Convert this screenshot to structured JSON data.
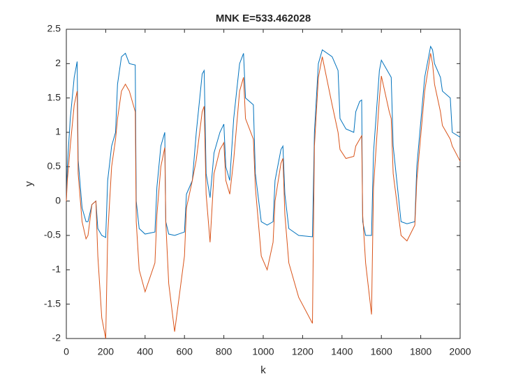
{
  "chart_data": {
    "type": "line",
    "title": "MNK E=533.462028",
    "xlabel": "k",
    "ylabel": "y",
    "x": [
      0,
      5,
      20,
      40,
      55,
      60,
      80,
      100,
      110,
      130,
      150,
      160,
      180,
      200,
      210,
      230,
      250,
      260,
      280,
      300,
      320,
      350,
      355,
      370,
      400,
      450,
      460,
      480,
      500,
      505,
      520,
      550,
      600,
      610,
      640,
      660,
      690,
      700,
      710,
      730,
      750,
      780,
      800,
      810,
      830,
      850,
      880,
      900,
      910,
      950,
      960,
      990,
      1020,
      1050,
      1060,
      1090,
      1100,
      1110,
      1130,
      1180,
      1250,
      1260,
      1280,
      1300,
      1350,
      1380,
      1390,
      1420,
      1460,
      1470,
      1490,
      1500,
      1505,
      1520,
      1550,
      1560,
      1590,
      1600,
      1640,
      1650,
      1660,
      1700,
      1730,
      1770,
      1780,
      1820,
      1850,
      1860,
      1870,
      1900,
      1910,
      1950,
      1960,
      2000
    ],
    "series": [
      {
        "color": "#0072BD",
        "values": [
          0,
          0.5,
          1.2,
          1.8,
          2.03,
          0.6,
          -0.1,
          -0.3,
          -0.3,
          -0.05,
          0.0,
          -0.4,
          -0.5,
          -0.53,
          0.3,
          0.8,
          1.0,
          1.7,
          2.1,
          2.15,
          2.0,
          1.98,
          0.0,
          -0.4,
          -0.48,
          -0.45,
          0.2,
          0.8,
          1.0,
          -0.3,
          -0.48,
          -0.5,
          -0.45,
          0.1,
          0.3,
          1.0,
          1.85,
          1.9,
          0.4,
          0.05,
          0.7,
          1.0,
          1.12,
          0.5,
          0.3,
          1.2,
          2.0,
          2.15,
          1.5,
          1.4,
          0.4,
          -0.3,
          -0.35,
          -0.3,
          0.3,
          0.75,
          0.8,
          0.1,
          -0.4,
          -0.5,
          -0.52,
          1.0,
          2.0,
          2.2,
          2.1,
          1.9,
          1.2,
          1.05,
          1.0,
          1.3,
          1.45,
          1.47,
          -0.3,
          -0.5,
          -0.5,
          0.7,
          1.9,
          2.05,
          1.85,
          1.8,
          0.8,
          -0.3,
          -0.33,
          -0.3,
          0.5,
          1.8,
          2.25,
          2.2,
          2.0,
          1.8,
          1.6,
          1.5,
          1.0,
          0.93
        ]
      },
      {
        "color": "#D95319",
        "values": [
          0.0,
          0.3,
          0.8,
          1.4,
          1.6,
          0.4,
          -0.3,
          -0.55,
          -0.5,
          -0.05,
          0.0,
          -0.8,
          -1.7,
          -2.0,
          -0.5,
          0.5,
          0.9,
          1.2,
          1.6,
          1.7,
          1.6,
          1.3,
          -0.3,
          -1.0,
          -1.32,
          -0.9,
          -0.2,
          0.5,
          0.78,
          -0.3,
          -1.2,
          -1.9,
          -0.8,
          -0.1,
          0.3,
          0.6,
          1.3,
          1.38,
          0.1,
          -0.6,
          0.4,
          0.75,
          0.85,
          0.3,
          0.1,
          0.6,
          1.6,
          1.8,
          1.2,
          0.9,
          0.2,
          -0.8,
          -1.0,
          -0.6,
          0.0,
          0.55,
          0.62,
          -0.2,
          -0.9,
          -1.4,
          -1.78,
          0.8,
          1.8,
          2.1,
          1.4,
          1.0,
          0.75,
          0.62,
          0.65,
          0.8,
          0.9,
          0.95,
          -0.2,
          -0.9,
          -1.65,
          0.2,
          1.5,
          1.82,
          1.3,
          1.2,
          0.4,
          -0.5,
          -0.58,
          -0.35,
          0.3,
          1.6,
          2.15,
          2.0,
          1.7,
          1.3,
          1.1,
          0.9,
          0.8,
          0.58
        ]
      }
    ],
    "xlim": [
      0,
      2000
    ],
    "ylim": [
      -2,
      2.5
    ],
    "xticks": [
      0,
      200,
      400,
      600,
      800,
      1000,
      1200,
      1400,
      1600,
      1800,
      2000
    ],
    "yticks": [
      -2,
      -1.5,
      -1,
      -0.5,
      0,
      0.5,
      1,
      1.5,
      2,
      2.5
    ]
  }
}
